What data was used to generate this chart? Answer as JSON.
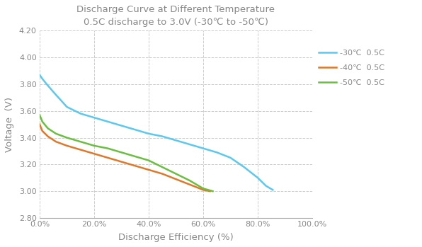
{
  "title_line1": "Discharge Curve at Different Temperature",
  "title_line2": "0.5C discharge to 3.0V (-30℃ to -50℃)",
  "xlabel": "Discharge Efficiency (%)",
  "ylabel": "Voltage  (V)",
  "xlim": [
    0,
    1.0
  ],
  "ylim": [
    2.8,
    4.2
  ],
  "yticks": [
    2.8,
    3.0,
    3.2,
    3.4,
    3.6,
    3.8,
    4.0,
    4.2
  ],
  "ytick_labels": [
    "2.80",
    "3.00",
    "3.20",
    "3.40",
    "3.60",
    "3.80",
    "4.00",
    "4.20"
  ],
  "xticks": [
    0.0,
    0.2,
    0.4,
    0.6,
    0.8,
    1.0
  ],
  "xtick_labels": [
    "0.0%",
    "20.0%",
    "40.0%",
    "60.0%",
    "80.0%",
    "100.0%"
  ],
  "fig_background": "#ffffff",
  "plot_background": "#ffffff",
  "grid_color": "#cccccc",
  "text_color": "#888888",
  "curves": [
    {
      "label": "-30℃  0.5C",
      "color": "#5bc8f0",
      "x": [
        0.0,
        0.01,
        0.03,
        0.06,
        0.1,
        0.15,
        0.2,
        0.25,
        0.3,
        0.35,
        0.4,
        0.45,
        0.5,
        0.55,
        0.6,
        0.65,
        0.7,
        0.75,
        0.8,
        0.83,
        0.855
      ],
      "y": [
        3.87,
        3.84,
        3.79,
        3.72,
        3.63,
        3.58,
        3.55,
        3.52,
        3.49,
        3.46,
        3.43,
        3.41,
        3.38,
        3.35,
        3.32,
        3.29,
        3.25,
        3.18,
        3.1,
        3.04,
        3.01
      ]
    },
    {
      "label": "-40℃  0.5C",
      "color": "#e07828",
      "x": [
        0.0,
        0.01,
        0.03,
        0.06,
        0.1,
        0.15,
        0.2,
        0.25,
        0.3,
        0.35,
        0.4,
        0.45,
        0.5,
        0.55,
        0.6,
        0.625
      ],
      "y": [
        3.5,
        3.45,
        3.41,
        3.37,
        3.34,
        3.31,
        3.28,
        3.25,
        3.22,
        3.19,
        3.16,
        3.13,
        3.09,
        3.05,
        3.01,
        3.0
      ]
    },
    {
      "label": "-50℃  0.5C",
      "color": "#6abf40",
      "x": [
        0.0,
        0.01,
        0.03,
        0.06,
        0.1,
        0.15,
        0.2,
        0.25,
        0.3,
        0.35,
        0.4,
        0.45,
        0.5,
        0.55,
        0.6,
        0.635
      ],
      "y": [
        3.57,
        3.52,
        3.47,
        3.43,
        3.4,
        3.37,
        3.34,
        3.32,
        3.29,
        3.26,
        3.23,
        3.18,
        3.13,
        3.08,
        3.02,
        3.0
      ]
    }
  ]
}
